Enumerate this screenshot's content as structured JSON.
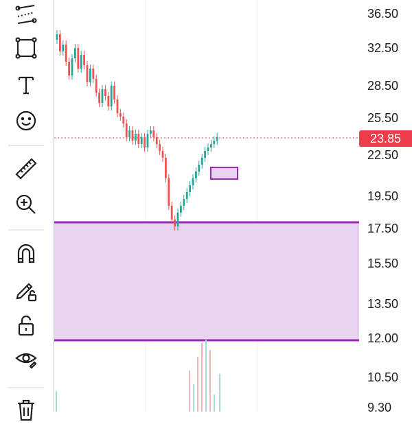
{
  "toolbar": {
    "tools": [
      {
        "name": "trend-line-tool",
        "icon": "trend-lines-icon"
      },
      {
        "name": "rectangle-tool",
        "icon": "rectangle-icon"
      },
      {
        "name": "text-tool",
        "icon": "text-icon"
      },
      {
        "name": "emoji-tool",
        "icon": "smiley-icon"
      },
      {
        "name": "measure-tool",
        "icon": "ruler-icon"
      },
      {
        "name": "zoom-tool",
        "icon": "zoom-in-icon"
      },
      {
        "name": "magnet-tool",
        "icon": "magnet-icon"
      },
      {
        "name": "lock-drawings-tool",
        "icon": "pencil-lock-icon"
      },
      {
        "name": "lock-all-tool",
        "icon": "unlock-icon"
      },
      {
        "name": "hide-drawings-tool",
        "icon": "eye-icon"
      },
      {
        "name": "remove-drawings-tool",
        "icon": "trash-icon"
      }
    ]
  },
  "chart": {
    "price_axis_labels": [
      "36.50",
      "32.50",
      "28.50",
      "25.50",
      "22.50",
      "19.50",
      "17.50",
      "15.50",
      "13.50",
      "12.00",
      "10.50",
      "9.30"
    ],
    "last_price": "23.85",
    "colors": {
      "up": "#26a69a",
      "down": "#ef5350",
      "zone": "#9c27b0",
      "zone_fill": "#e7d3ef",
      "price_tag": "#ee3d4a"
    }
  }
}
